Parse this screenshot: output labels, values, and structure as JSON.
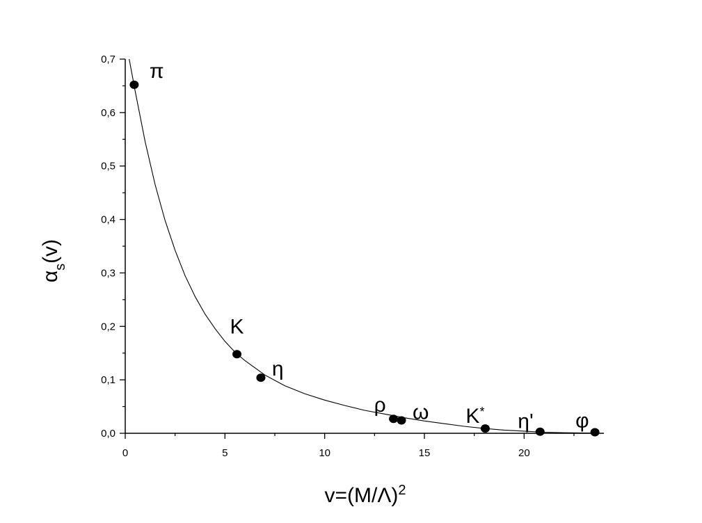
{
  "chart_data": {
    "type": "scatter",
    "title": "",
    "xlabel": "v=(M/Λ)",
    "xlabel_superscript": "2",
    "ylabel": "α",
    "ylabel_subscript": "s",
    "ylabel_suffix": "(v)",
    "xlim": [
      0,
      24
    ],
    "ylim": [
      0,
      0.7
    ],
    "x_ticks": [
      0,
      5,
      10,
      15,
      20
    ],
    "x_tick_labels": [
      "0",
      "5",
      "10",
      "15",
      "20"
    ],
    "y_ticks": [
      0,
      0.1,
      0.2,
      0.3,
      0.4,
      0.5,
      0.6,
      0.7
    ],
    "y_tick_labels": [
      "0,0",
      "0,1",
      "0,2",
      "0,3",
      "0,4",
      "0,5",
      "0,6",
      "0,7"
    ],
    "grid": false,
    "legend": "none",
    "marker_color": "#000000",
    "curve_color": "#000000",
    "points": [
      {
        "label": "π",
        "x": 0.45,
        "y": 0.652
      },
      {
        "label": "K",
        "x": 5.6,
        "y": 0.148
      },
      {
        "label": "η",
        "x": 6.8,
        "y": 0.104
      },
      {
        "label": "ρ",
        "x": 13.45,
        "y": 0.027
      },
      {
        "label": "ω",
        "x": 13.85,
        "y": 0.024
      },
      {
        "label": "K",
        "label_superscript": "*",
        "x": 18.05,
        "y": 0.009
      },
      {
        "label": "η'",
        "x": 20.8,
        "y": 0.003
      },
      {
        "label": "φ",
        "x": 23.55,
        "y": 0.002
      }
    ],
    "fit_curve": {
      "x": [
        0.2,
        0.5,
        1,
        1.5,
        2,
        2.5,
        3,
        3.5,
        4,
        4.5,
        5,
        5.5,
        6,
        7,
        8,
        9,
        10,
        11,
        12,
        13,
        14,
        15,
        16,
        17,
        18,
        19,
        20,
        21,
        22,
        23,
        23.6
      ],
      "y": [
        0.7,
        0.64,
        0.545,
        0.465,
        0.398,
        0.342,
        0.295,
        0.256,
        0.223,
        0.196,
        0.172,
        0.152,
        0.136,
        0.109,
        0.089,
        0.074,
        0.062,
        0.052,
        0.043,
        0.036,
        0.029,
        0.023,
        0.018,
        0.013,
        0.009,
        0.006,
        0.004,
        0.002,
        0.001,
        0.0005,
        0.0002
      ]
    }
  }
}
